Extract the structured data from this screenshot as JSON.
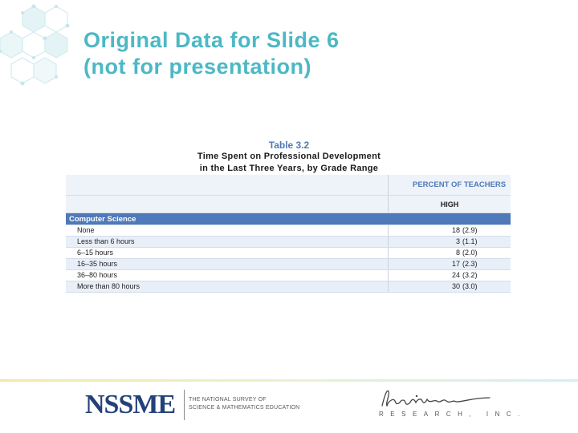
{
  "slide": {
    "title_line1": "Original Data for Slide 6",
    "title_line2": "(not for presentation)"
  },
  "table": {
    "number": "Table 3.2",
    "caption_line1": "Time Spent on Professional Development",
    "caption_line2": "in the Last Three Years, by Grade Range",
    "header_group": "PERCENT OF TEACHERS",
    "header_col": "HIGH",
    "section": "Computer Science",
    "rows": [
      {
        "label": "None",
        "value": "18",
        "se": "(2.9)"
      },
      {
        "label": "Less than 6 hours",
        "value": "3",
        "se": "(1.1)"
      },
      {
        "label": "6–15 hours",
        "value": "8",
        "se": "(2.0)"
      },
      {
        "label": "16–35 hours",
        "value": "17",
        "se": "(2.3)"
      },
      {
        "label": "36–80 hours",
        "value": "24",
        "se": "(3.2)"
      },
      {
        "label": "More than 80 hours",
        "value": "30",
        "se": "(3.0)"
      }
    ]
  },
  "footer": {
    "nssme_logo": "NSSME",
    "nssme_tag_line1": "THE NATIONAL SURVEY OF",
    "nssme_tag_line2": "SCIENCE & MATHEMATICS EDUCATION",
    "horizon_sub": "RESEARCH, INC."
  },
  "colors": {
    "title": "#4cb8c4",
    "table_accent": "#4f79b8",
    "logo_navy": "#23417a"
  }
}
